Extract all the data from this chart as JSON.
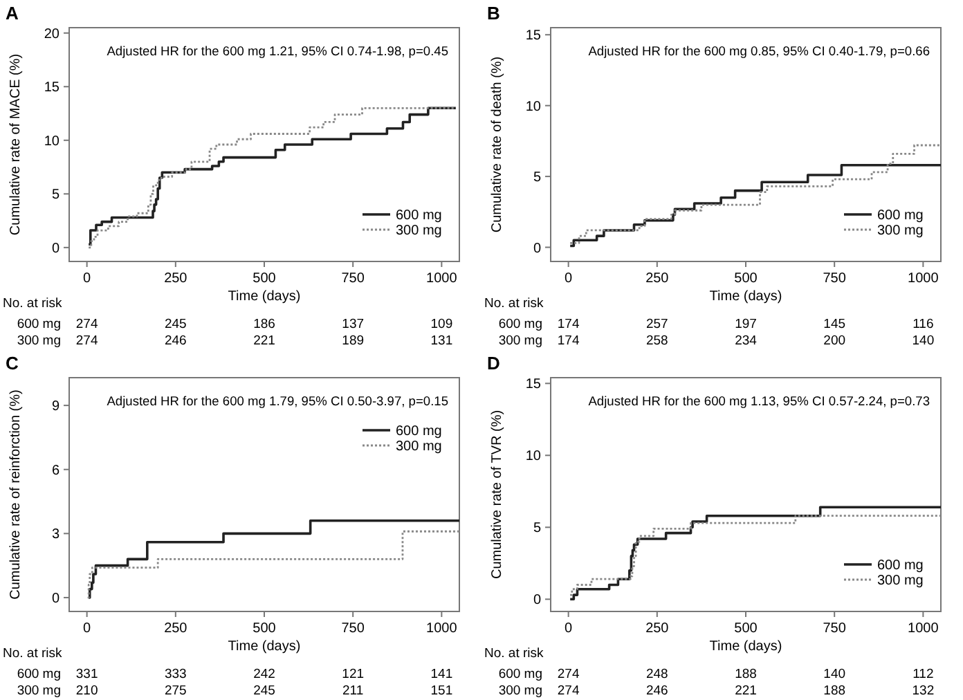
{
  "chart_data": [
    {
      "type": "step",
      "title": "A",
      "xlabel": "Time (days)",
      "ylabel": "Cumulative rate of MACE (%)",
      "xlim": [
        -50,
        1050
      ],
      "ylim": [
        -1.3,
        20.5
      ],
      "xticks": [
        0,
        250,
        500,
        750,
        1000
      ],
      "yticks": [
        0,
        5,
        10,
        15,
        20
      ],
      "legend": "bottom right",
      "annotations": [
        "Adjusted HR for the 600 mg 1.21, 95% CI 0.74-1.98, p=0.45",
        "No. at risk",
        "600 mg",
        "274",
        "245",
        "186",
        "137",
        "109",
        "300 mg",
        "274",
        "246",
        "221",
        "189",
        "131"
      ],
      "series": [
        {
          "name": "600 mg",
          "color": "#222222",
          "line_style": "solid",
          "x": [
            5,
            10,
            26,
            42,
            70,
            186,
            190,
            195,
            200,
            205,
            212,
            235,
            276,
            353,
            372,
            385,
            532,
            558,
            635,
            744,
            846,
            891,
            910,
            962,
            1040
          ],
          "values": [
            0.3,
            1.6,
            2.1,
            2.4,
            2.8,
            3.4,
            4.0,
            4.5,
            5.5,
            6.5,
            7.0,
            7.0,
            7.3,
            7.6,
            8.0,
            8.4,
            9.1,
            9.6,
            10.1,
            10.6,
            11.1,
            11.7,
            12.4,
            13.0,
            13.0
          ]
        },
        {
          "name": "300 mg",
          "color": "#888888",
          "line_style": "dotted",
          "x": [
            5,
            12,
            20,
            30,
            60,
            90,
            115,
            141,
            173,
            180,
            187,
            200,
            210,
            240,
            280,
            295,
            346,
            365,
            423,
            462,
            628,
            667,
            699,
            776,
            1040
          ],
          "values": [
            0,
            0.6,
            1.0,
            1.6,
            2.0,
            2.4,
            2.9,
            3.2,
            4.0,
            5.0,
            5.8,
            6.3,
            6.6,
            7.0,
            7.3,
            8.0,
            9.2,
            9.6,
            10.1,
            10.6,
            11.2,
            11.7,
            12.4,
            13.0,
            13.0
          ]
        }
      ]
    },
    {
      "type": "step",
      "title": "B",
      "xlabel": "Time (days)",
      "ylabel": "Cumulative rate of death (%)",
      "xlim": [
        -50,
        1050
      ],
      "ylim": [
        -1,
        15.5
      ],
      "xticks": [
        0,
        250,
        500,
        750,
        1000
      ],
      "yticks": [
        0,
        5,
        10,
        15
      ],
      "legend": "bottom right",
      "annotations": [
        "Adjusted HR for the 600 mg 0.85, 95% CI 0.40-1.79, p=0.66",
        "No. at risk",
        "600 mg",
        "174",
        "257",
        "197",
        "145",
        "116",
        "300 mg",
        "174",
        "258",
        "234",
        "200",
        "140"
      ],
      "series": [
        {
          "name": "600 mg",
          "color": "#222222",
          "line_style": "solid",
          "x": [
            5,
            15,
            80,
            100,
            185,
            215,
            295,
            300,
            355,
            430,
            470,
            545,
            675,
            770,
            1050
          ],
          "values": [
            0.1,
            0.5,
            0.8,
            1.2,
            1.6,
            1.9,
            2.3,
            2.7,
            3.1,
            3.5,
            4.0,
            4.6,
            5.1,
            5.8,
            5.8
          ]
        },
        {
          "name": "300 mg",
          "color": "#888888",
          "line_style": "dotted",
          "x": [
            5,
            30,
            50,
            200,
            215,
            290,
            300,
            375,
            540,
            560,
            745,
            855,
            900,
            915,
            975,
            1050
          ],
          "values": [
            0.3,
            0.8,
            1.2,
            1.5,
            2.0,
            2.3,
            2.6,
            3.0,
            3.9,
            4.3,
            4.8,
            5.3,
            5.9,
            6.6,
            7.2,
            7.2
          ]
        }
      ]
    },
    {
      "type": "step",
      "title": "C",
      "xlabel": "Time (days)",
      "ylabel": "Cumulative rate of reinforction (%)",
      "xlim": [
        -50,
        1050
      ],
      "ylim": [
        -0.65,
        10.3
      ],
      "xticks": [
        0,
        250,
        500,
        750,
        1000
      ],
      "yticks": [
        0,
        3,
        6,
        9
      ],
      "legend": "top right",
      "annotations": [
        "Adjusted HR for the 600 mg 1.79, 95% CI 0.50-3.97, p=0.15",
        "No. at risk",
        "600 mg",
        "331",
        "333",
        "242",
        "121",
        "141",
        "300 mg",
        "210",
        "275",
        "245",
        "211",
        "151"
      ],
      "series": [
        {
          "name": "600 mg",
          "color": "#222222",
          "line_style": "solid",
          "x": [
            5,
            8,
            14,
            18,
            25,
            115,
            170,
            385,
            630,
            1050
          ],
          "values": [
            0,
            0.4,
            0.7,
            1.1,
            1.5,
            1.8,
            2.6,
            3.0,
            3.6,
            3.6
          ]
        },
        {
          "name": "300 mg",
          "color": "#888888",
          "line_style": "dotted",
          "x": [
            2,
            5,
            8,
            15,
            200,
            890,
            1050
          ],
          "values": [
            0,
            0.6,
            1.1,
            1.4,
            1.8,
            3.1,
            3.1
          ]
        }
      ]
    },
    {
      "type": "step",
      "title": "D",
      "xlabel": "Time (days)",
      "ylabel": "Cumulative rate of TVR (%)",
      "xlim": [
        -50,
        1050
      ],
      "ylim": [
        -0.85,
        15.4
      ],
      "xticks": [
        0,
        250,
        500,
        750,
        1000
      ],
      "yticks": [
        0,
        5,
        10,
        15
      ],
      "legend": "bottom right",
      "annotations": [
        "Adjusted HR for the 600 mg 1.13, 95% CI 0.57-2.24, p=0.73",
        "No. at risk",
        "600 mg",
        "274",
        "248",
        "188",
        "140",
        "112",
        "300 mg",
        "274",
        "246",
        "221",
        "188",
        "132"
      ],
      "series": [
        {
          "name": "600 mg",
          "color": "#222222",
          "line_style": "solid",
          "x": [
            5,
            15,
            25,
            115,
            140,
            172,
            177,
            181,
            185,
            195,
            275,
            345,
            350,
            390,
            710,
            1050
          ],
          "values": [
            0,
            0.3,
            0.7,
            1.0,
            1.4,
            2.0,
            3.0,
            3.4,
            3.8,
            4.2,
            4.6,
            5.0,
            5.4,
            5.8,
            6.4,
            6.4
          ]
        },
        {
          "name": "300 mg",
          "color": "#888888",
          "line_style": "dotted",
          "x": [
            5,
            10,
            25,
            65,
            175,
            180,
            185,
            190,
            200,
            240,
            345,
            640,
            1050
          ],
          "values": [
            0.3,
            0.7,
            1.0,
            1.4,
            1.6,
            2.3,
            3.0,
            4.0,
            4.4,
            4.9,
            5.3,
            5.8,
            5.8
          ]
        }
      ]
    }
  ]
}
